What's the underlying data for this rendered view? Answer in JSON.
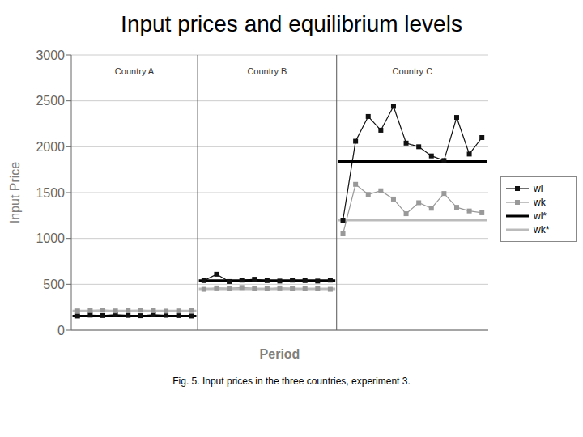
{
  "chart_data": {
    "type": "line",
    "title": "Input prices and equilibrium levels",
    "xlabel": "Period",
    "ylabel": "Input Price",
    "caption": "Fig. 5. Input prices in the three countries, experiment 3.",
    "xlim": [
      0.5,
      33.5
    ],
    "ylim": [
      0,
      3000
    ],
    "yticks": [
      0,
      500,
      1000,
      1500,
      2000,
      2500,
      3000
    ],
    "tick_labels": "y",
    "grid": true,
    "groups": [
      {
        "label": "Country A",
        "x": [
          1,
          2,
          3,
          4,
          5,
          6,
          7,
          8,
          9,
          10
        ]
      },
      {
        "label": "Country B",
        "x": [
          11,
          12,
          13,
          14,
          15,
          16,
          17,
          18,
          19,
          20,
          21
        ]
      },
      {
        "label": "Country C",
        "x": [
          22,
          23,
          24,
          25,
          26,
          27,
          28,
          29,
          30,
          31,
          32,
          33
        ]
      }
    ],
    "dividers": [
      10.5,
      21.5
    ],
    "series": [
      {
        "name": "wl",
        "type": "line",
        "color": "#111111",
        "marker": "square",
        "values": [
          [
            155,
            165,
            160,
            170,
            162,
            158,
            168,
            163,
            160,
            155
          ],
          [
            540,
            610,
            530,
            545,
            555,
            540,
            535,
            545,
            540,
            535,
            545
          ],
          [
            1200,
            2060,
            2330,
            2180,
            2440,
            2040,
            2000,
            1900,
            1850,
            2320,
            1920,
            2100
          ]
        ]
      },
      {
        "name": "wk",
        "type": "line",
        "color": "#999999",
        "marker": "square",
        "values": [
          [
            210,
            215,
            220,
            210,
            215,
            218,
            212,
            208,
            210,
            215
          ],
          [
            445,
            460,
            455,
            465,
            455,
            450,
            460,
            455,
            450,
            455,
            445
          ],
          [
            1050,
            1590,
            1480,
            1520,
            1430,
            1270,
            1390,
            1330,
            1490,
            1340,
            1300,
            1280
          ]
        ]
      },
      {
        "name": "wl*",
        "type": "hline",
        "color": "#000000",
        "values": [
          155,
          540,
          1840
        ]
      },
      {
        "name": "wk*",
        "type": "hline",
        "color": "#bbbbbb",
        "values": [
          210,
          450,
          1200
        ]
      }
    ]
  }
}
